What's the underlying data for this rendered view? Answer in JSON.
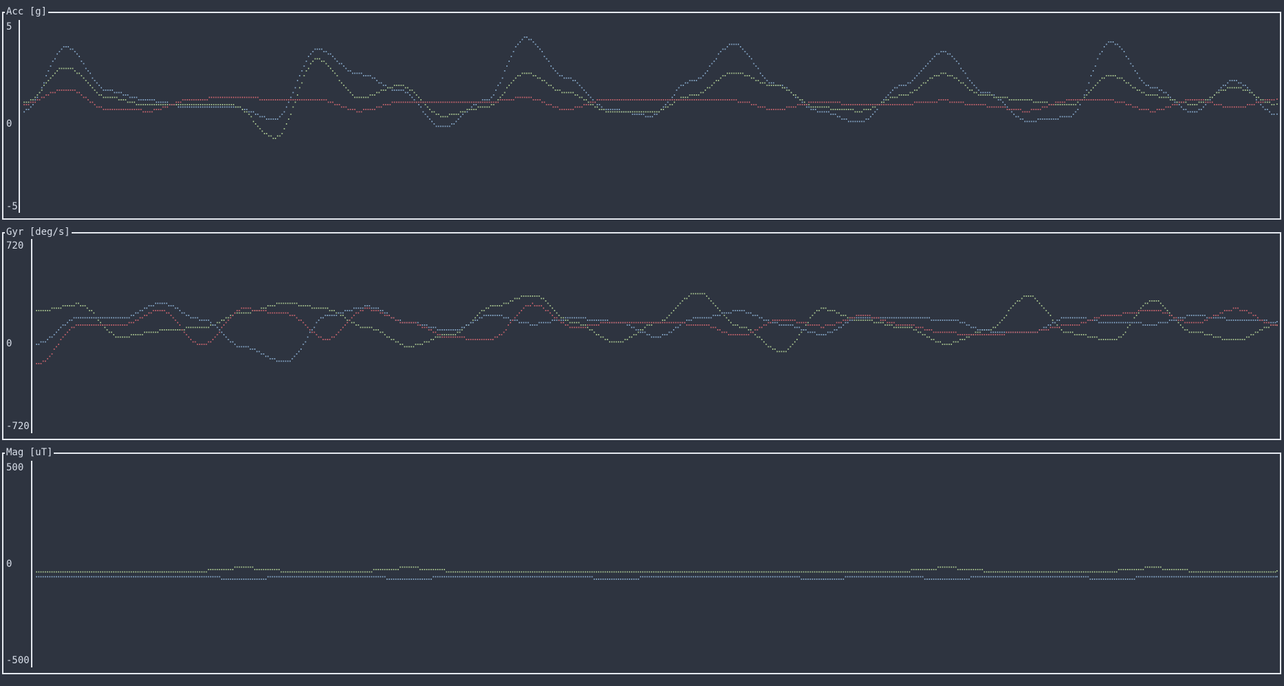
{
  "chart_data": [
    {
      "type": "scatter",
      "title": "Acc [g]",
      "ylim": [
        -5,
        5
      ],
      "y_ticks": [
        "5",
        "0",
        "-5"
      ],
      "x_range": [
        0,
        300
      ],
      "series": [
        {
          "color": "#81a1c1",
          "x": [
            0,
            10,
            20,
            30,
            40,
            50,
            60,
            70,
            80,
            90,
            100,
            110,
            120,
            130,
            140,
            150,
            160,
            170,
            180,
            190,
            200,
            210,
            220,
            230,
            240,
            250,
            260,
            270,
            280,
            290,
            300
          ],
          "values": [
            0,
            3.8,
            1.2,
            0.6,
            0.2,
            0.2,
            -0.5,
            3.7,
            2.2,
            1.2,
            -1.0,
            0.6,
            4.4,
            2.0,
            0.1,
            -0.3,
            1.8,
            4.0,
            1.6,
            0.0,
            -0.7,
            1.5,
            3.5,
            1.1,
            -0.6,
            -0.4,
            4.1,
            1.4,
            -0.1,
            1.8,
            -0.2
          ]
        },
        {
          "color": "#a3be8c",
          "x": [
            0,
            10,
            20,
            30,
            40,
            50,
            60,
            70,
            80,
            90,
            100,
            110,
            120,
            130,
            140,
            150,
            160,
            170,
            180,
            190,
            200,
            210,
            220,
            230,
            240,
            250,
            260,
            270,
            280,
            290,
            300
          ],
          "values": [
            0.5,
            2.6,
            0.8,
            0.3,
            0.4,
            0.3,
            -1.6,
            3.1,
            0.8,
            1.5,
            -0.3,
            0.2,
            2.3,
            1.1,
            0.0,
            -0.1,
            0.9,
            2.3,
            1.5,
            0.2,
            0.0,
            0.9,
            2.2,
            0.9,
            0.6,
            0.3,
            2.1,
            0.9,
            0.4,
            1.4,
            0.4
          ]
        },
        {
          "color": "#bf616a",
          "x": [
            0,
            10,
            20,
            30,
            40,
            50,
            60,
            70,
            80,
            90,
            100,
            110,
            120,
            130,
            140,
            150,
            160,
            170,
            180,
            190,
            200,
            210,
            220,
            230,
            240,
            250,
            260,
            270,
            280,
            290,
            300
          ],
          "values": [
            0.4,
            1.3,
            0.1,
            0.0,
            0.7,
            0.8,
            0.7,
            0.7,
            0.0,
            0.5,
            0.5,
            0.5,
            0.8,
            0.1,
            0.7,
            0.6,
            0.6,
            0.6,
            0.1,
            0.5,
            0.4,
            0.4,
            0.6,
            0.3,
            0.0,
            0.6,
            0.6,
            0.0,
            0.7,
            0.2,
            0.7
          ]
        }
      ]
    },
    {
      "type": "scatter",
      "title": "Gyr [deg/s]",
      "ylim": [
        -720,
        720
      ],
      "y_ticks": [
        "720",
        "0",
        "-720"
      ],
      "x_range": [
        0,
        300
      ],
      "series": [
        {
          "color": "#a3be8c",
          "x": [
            0,
            10,
            20,
            30,
            40,
            50,
            60,
            70,
            80,
            90,
            100,
            110,
            120,
            130,
            140,
            150,
            160,
            170,
            180,
            190,
            200,
            210,
            220,
            230,
            240,
            250,
            260,
            270,
            280,
            290,
            300
          ],
          "values": [
            160,
            220,
            -60,
            -10,
            20,
            150,
            230,
            180,
            20,
            -140,
            -40,
            200,
            300,
            60,
            -110,
            60,
            320,
            30,
            -190,
            180,
            80,
            20,
            -120,
            0,
            290,
            -30,
            -90,
            260,
            -20,
            -90,
            40
          ]
        },
        {
          "color": "#81a1c1",
          "x": [
            0,
            10,
            20,
            30,
            40,
            50,
            60,
            70,
            80,
            90,
            100,
            110,
            120,
            130,
            140,
            150,
            160,
            170,
            180,
            190,
            200,
            210,
            220,
            230,
            240,
            250,
            260,
            270,
            280,
            290,
            300
          ],
          "values": [
            -120,
            100,
            100,
            230,
            90,
            -150,
            -280,
            120,
            200,
            60,
            -10,
            130,
            50,
            100,
            70,
            -60,
            100,
            160,
            50,
            -40,
            110,
            100,
            90,
            -10,
            -30,
            110,
            60,
            50,
            120,
            90,
            70
          ]
        },
        {
          "color": "#bf616a",
          "x": [
            0,
            10,
            20,
            30,
            40,
            50,
            60,
            70,
            80,
            90,
            100,
            110,
            120,
            130,
            140,
            150,
            160,
            170,
            180,
            190,
            200,
            210,
            220,
            230,
            240,
            250,
            260,
            270,
            280,
            290,
            300
          ],
          "values": [
            -300,
            40,
            40,
            170,
            -130,
            180,
            140,
            -80,
            180,
            60,
            -70,
            -80,
            220,
            20,
            70,
            60,
            50,
            -50,
            90,
            30,
            120,
            40,
            -30,
            -40,
            -20,
            40,
            130,
            170,
            60,
            180,
            40
          ]
        }
      ]
    },
    {
      "type": "scatter",
      "title": "Mag [uT]",
      "ylim": [
        -500,
        500
      ],
      "y_ticks": [
        "500",
        "0",
        "-500"
      ],
      "x_range": [
        0,
        300
      ],
      "series": [
        {
          "color": "#a3be8c",
          "x": [
            0,
            10,
            20,
            30,
            40,
            50,
            60,
            70,
            80,
            90,
            100,
            110,
            120,
            130,
            140,
            150,
            160,
            170,
            180,
            190,
            200,
            210,
            220,
            230,
            240,
            250,
            260,
            270,
            280,
            290,
            300
          ],
          "values": [
            -25,
            -25,
            -25,
            -25,
            -25,
            -10,
            -25,
            -25,
            -25,
            -10,
            -25,
            -25,
            -25,
            -25,
            -25,
            -25,
            -25,
            -25,
            -25,
            -25,
            -25,
            -25,
            -10,
            -25,
            -25,
            -25,
            -25,
            -10,
            -25,
            -25,
            -25
          ]
        },
        {
          "color": "#81a1c1",
          "x": [
            0,
            10,
            20,
            30,
            40,
            50,
            60,
            70,
            80,
            90,
            100,
            110,
            120,
            130,
            140,
            150,
            160,
            170,
            180,
            190,
            200,
            210,
            220,
            230,
            240,
            250,
            260,
            270,
            280,
            290,
            300
          ],
          "values": [
            -55,
            -55,
            -55,
            -55,
            -55,
            -70,
            -55,
            -55,
            -55,
            -70,
            -55,
            -55,
            -55,
            -55,
            -70,
            -55,
            -55,
            -55,
            -55,
            -70,
            -55,
            -55,
            -70,
            -55,
            -55,
            -55,
            -70,
            -55,
            -55,
            -55,
            -55
          ]
        }
      ]
    }
  ]
}
